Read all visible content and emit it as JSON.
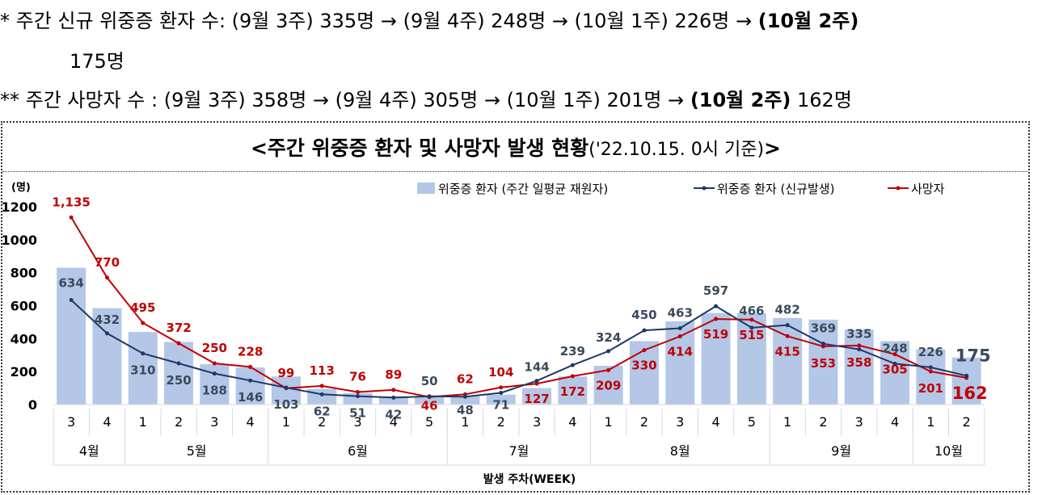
{
  "notes": {
    "line1_a": "*  주간 신규 위중증 환자 수: (9월 3주) 335명 → (9월 4주) 248명 → (10월 1주) 226명 → ",
    "line1_b": "(10월 2주)",
    "line1_c": "175명",
    "line2_a": "**  주간 사망자 수 : (9월 3주) 358명 → (9월 4주) 305명 → (10월 1주) 201명 → ",
    "line2_b": "(10월 2주)",
    "line2_c": " 162명"
  },
  "chart_title_main": "<주간 위중증 환자 및 사망자 발생 현황",
  "chart_title_date": "('22.10.15. 0시 기준)",
  "chart_title_end": ">",
  "colors": {
    "bar": "#b4c7e7",
    "icu_line": "#1f3864",
    "death_line": "#c00000",
    "label_dark": "#3a4a5c"
  },
  "chart_data": {
    "type": "bar",
    "title": "주간 위중증 환자 및 사망자 발생 현황",
    "ylabel": "(명)",
    "xlabel": "발생 주차(WEEK)",
    "ylim": [
      0,
      1200
    ],
    "yticks": [
      0,
      200,
      400,
      600,
      800,
      1000,
      1200
    ],
    "weeks": [
      "3",
      "4",
      "1",
      "2",
      "3",
      "4",
      "1",
      "2",
      "3",
      "4",
      "5",
      "1",
      "2",
      "3",
      "4",
      "1",
      "2",
      "3",
      "4",
      "5",
      "1",
      "2",
      "3",
      "4",
      "1",
      "2"
    ],
    "months": [
      {
        "label": "4월",
        "span": 2
      },
      {
        "label": "5월",
        "span": 4
      },
      {
        "label": "6월",
        "span": 5
      },
      {
        "label": "7월",
        "span": 4
      },
      {
        "label": "8월",
        "span": 5
      },
      {
        "label": "9월",
        "span": 4
      },
      {
        "label": "10월",
        "span": 2
      }
    ],
    "legend": [
      "위중증 환자 (주간 일평균 재원자)",
      "위중증 환자 (신규발생)",
      "사망자"
    ],
    "legend_position": "top-right",
    "series": [
      {
        "name": "위중증 환자 (주간 일평균 재원자)",
        "type": "bar",
        "values": [
          830,
          585,
          440,
          380,
          245,
          225,
          170,
          95,
          70,
          50,
          45,
          50,
          60,
          100,
          170,
          235,
          385,
          505,
          555,
          555,
          525,
          515,
          455,
          385,
          335,
          285
        ]
      },
      {
        "name": "위중증 환자 (신규발생)",
        "type": "line",
        "values": [
          634,
          432,
          310,
          250,
          188,
          146,
          103,
          62,
          51,
          42,
          50,
          48,
          71,
          144,
          239,
          324,
          450,
          463,
          597,
          466,
          482,
          369,
          335,
          248,
          226,
          175
        ]
      },
      {
        "name": "사망자",
        "type": "line",
        "values": [
          1135,
          770,
          495,
          372,
          250,
          228,
          99,
          113,
          76,
          89,
          46,
          62,
          104,
          127,
          172,
          209,
          330,
          414,
          519,
          515,
          415,
          353,
          358,
          305,
          201,
          162
        ]
      }
    ],
    "icu_labels": [
      "634",
      "432",
      "310",
      "250",
      "188",
      "146",
      "103",
      "62",
      "51",
      "42",
      "50",
      "48",
      "71",
      "144",
      "239",
      "324",
      "450",
      "463",
      "597",
      "466",
      "482",
      "369",
      "335",
      "248",
      "226",
      "175"
    ],
    "death_labels": [
      "1,135",
      "770",
      "495",
      "372",
      "250",
      "228",
      "99",
      "113",
      "76",
      "89",
      "46",
      "62",
      "104",
      "127",
      "172",
      "209",
      "330",
      "414",
      "519",
      "515",
      "415",
      "353",
      "358",
      "305",
      "201",
      "162"
    ]
  }
}
